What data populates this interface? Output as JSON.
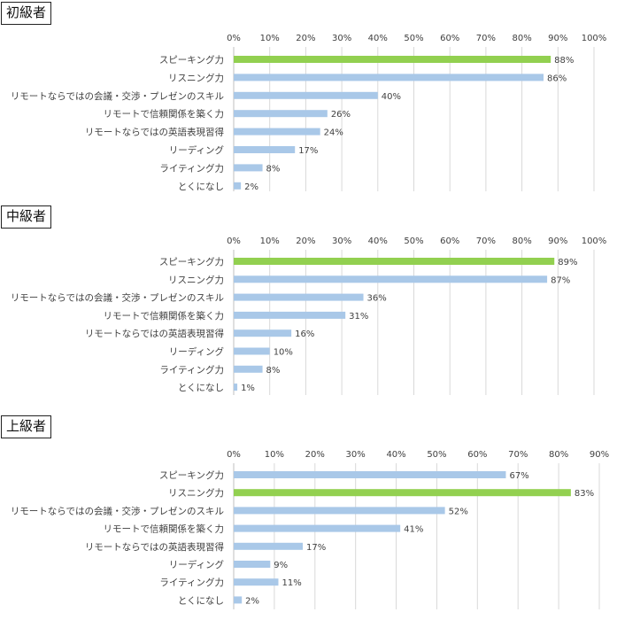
{
  "chart_data": [
    {
      "type": "bar",
      "orientation": "horizontal",
      "title": "初級者",
      "categories": [
        "スピーキング力",
        "リスニング力",
        "リモートならではの会議・交渉・プレゼンのスキル",
        "リモートで信頼関係を築く力",
        "リモートならではの英語表現習得",
        "リーディング",
        "ライティング力",
        "とくになし"
      ],
      "values": [
        88,
        86,
        40,
        26,
        24,
        17,
        8,
        2
      ],
      "value_labels": [
        "88%",
        "86%",
        "40%",
        "26%",
        "24%",
        "17%",
        "8%",
        "2%"
      ],
      "highlight_index": 0,
      "xlim": [
        0,
        100
      ],
      "x_ticks": [
        "0%",
        "10%",
        "20%",
        "30%",
        "40%",
        "50%",
        "60%",
        "70%",
        "80%",
        "90%",
        "100%"
      ],
      "grid": true,
      "axis_position": "top"
    },
    {
      "type": "bar",
      "orientation": "horizontal",
      "title": "中級者",
      "categories": [
        "スピーキング力",
        "リスニング力",
        "リモートならではの会議・交渉・プレゼンのスキル",
        "リモートで信頼関係を築く力",
        "リモートならではの英語表現習得",
        "リーディング",
        "ライティング力",
        "とくになし"
      ],
      "values": [
        89,
        87,
        36,
        31,
        16,
        10,
        8,
        1
      ],
      "value_labels": [
        "89%",
        "87%",
        "36%",
        "31%",
        "16%",
        "10%",
        "8%",
        "1%"
      ],
      "highlight_index": 0,
      "xlim": [
        0,
        100
      ],
      "x_ticks": [
        "0%",
        "10%",
        "20%",
        "30%",
        "40%",
        "50%",
        "60%",
        "70%",
        "80%",
        "90%",
        "100%"
      ],
      "grid": true,
      "axis_position": "top"
    },
    {
      "type": "bar",
      "orientation": "horizontal",
      "title": "上級者",
      "categories": [
        "スピーキング力",
        "リスニング力",
        "リモートならではの会議・交渉・プレゼンのスキル",
        "リモートで信頼関係を築く力",
        "リモートならではの英語表現習得",
        "リーディング",
        "ライティング力",
        "とくになし"
      ],
      "values": [
        67,
        83,
        52,
        41,
        17,
        9,
        11,
        2
      ],
      "value_labels": [
        "67%",
        "83%",
        "52%",
        "41%",
        "17%",
        "9%",
        "11%",
        "2%"
      ],
      "highlight_index": 1,
      "xlim": [
        0,
        90
      ],
      "x_ticks": [
        "0%",
        "10%",
        "20%",
        "30%",
        "40%",
        "50%",
        "60%",
        "70%",
        "80%",
        "90%"
      ],
      "grid": true,
      "axis_position": "top"
    }
  ],
  "colors": {
    "highlight_bar": "#92d050",
    "bar": "#a9c8e8",
    "grid": "#d9d9d9",
    "text": "#404040"
  }
}
